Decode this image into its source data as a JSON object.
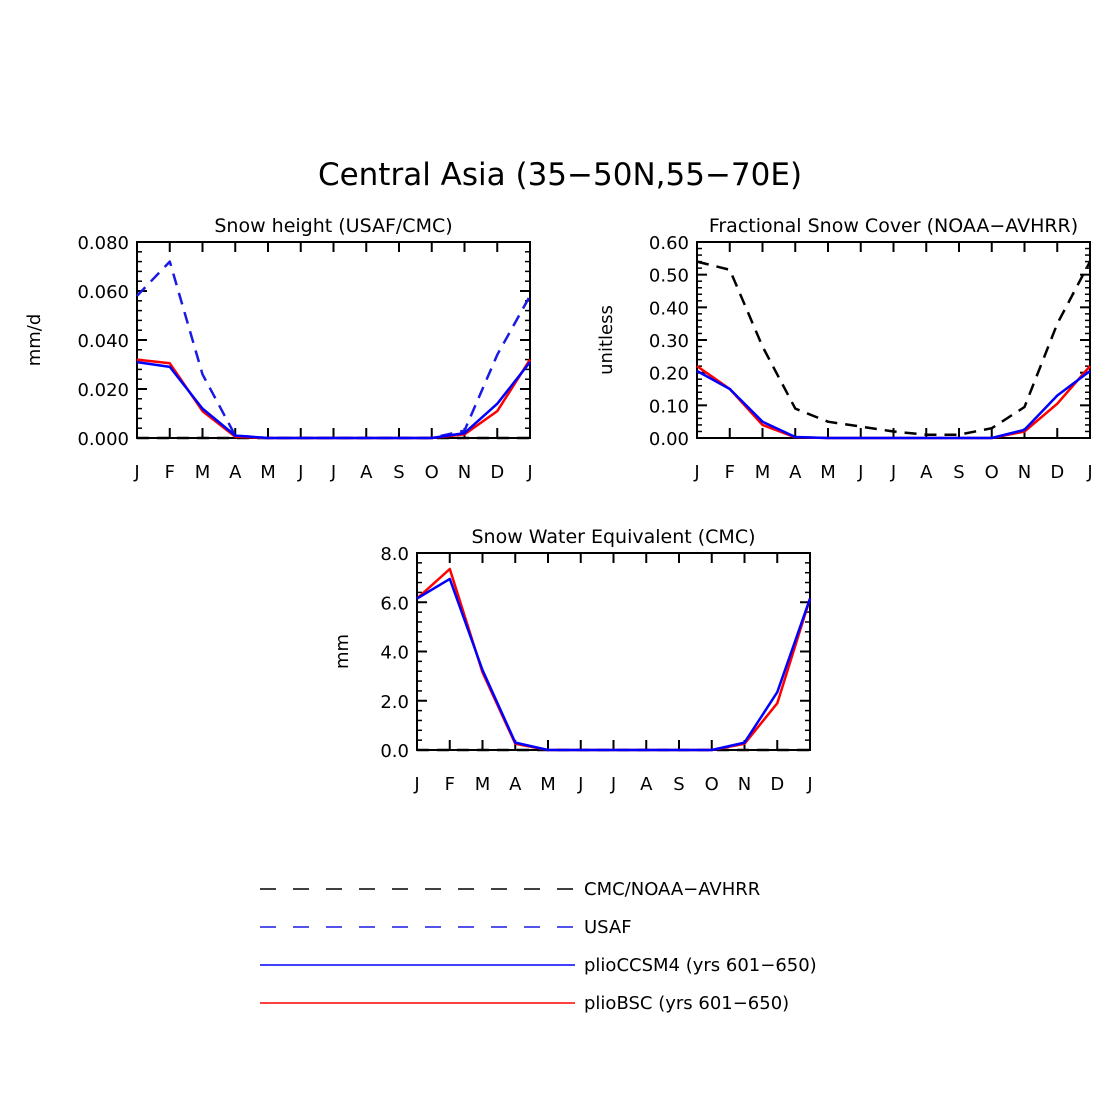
{
  "title": "Central Asia (35−50N,55−70E)",
  "colors": {
    "obs": "#000000",
    "usaf": "#1a1ae6",
    "ccsm": "#0000ff",
    "bsc": "#ff0000"
  },
  "legend": [
    {
      "label": "CMC/NOAA−AVHRR",
      "color": "#000000",
      "style": "dashed"
    },
    {
      "label": "USAF",
      "color": "#1a1ae6",
      "style": "dashed"
    },
    {
      "label": "plioCCSM4 (yrs 601−650)",
      "color": "#0000ff",
      "style": "solid"
    },
    {
      "label": "plioBSC (yrs 601−650)",
      "color": "#ff0000",
      "style": "solid"
    }
  ],
  "chart_data": [
    {
      "type": "line",
      "title": "Snow height (USAF/CMC)",
      "xlabel": "",
      "ylabel": "mm/d",
      "categories": [
        "J",
        "F",
        "M",
        "A",
        "M",
        "J",
        "J",
        "A",
        "S",
        "O",
        "N",
        "D",
        "J"
      ],
      "ylim": [
        0,
        0.08
      ],
      "yticks": [
        "0.000",
        "0.020",
        "0.040",
        "0.060",
        "0.080"
      ],
      "series": [
        {
          "name": "CMC/NOAA−AVHRR",
          "color": "#000000",
          "dashed": true,
          "values": [
            0,
            0,
            0,
            0,
            0,
            0,
            0,
            0,
            0,
            0,
            0,
            0,
            0
          ]
        },
        {
          "name": "USAF",
          "color": "#1a1ae6",
          "dashed": true,
          "values": [
            0.058,
            0.072,
            0.026,
            0.001,
            0,
            0,
            0,
            0,
            0,
            0,
            0.003,
            0.034,
            0.058
          ]
        },
        {
          "name": "plioBSC (yrs 601−650)",
          "color": "#ff0000",
          "dashed": false,
          "values": [
            0.032,
            0.0305,
            0.011,
            0.0005,
            0,
            0,
            0,
            0,
            0,
            0,
            0.0015,
            0.011,
            0.032
          ]
        },
        {
          "name": "plioCCSM4 (yrs 601−650)",
          "color": "#0000ff",
          "dashed": false,
          "values": [
            0.031,
            0.029,
            0.012,
            0.001,
            0,
            0,
            0,
            0,
            0,
            0,
            0.002,
            0.014,
            0.031
          ]
        }
      ]
    },
    {
      "type": "line",
      "title": "Fractional Snow Cover (NOAA−AVHRR)",
      "xlabel": "",
      "ylabel": "unitless",
      "categories": [
        "J",
        "F",
        "M",
        "A",
        "M",
        "J",
        "J",
        "A",
        "S",
        "O",
        "N",
        "D",
        "J"
      ],
      "ylim": [
        0,
        0.6
      ],
      "yticks": [
        "0.00",
        "0.10",
        "0.20",
        "0.30",
        "0.40",
        "0.50",
        "0.60"
      ],
      "series": [
        {
          "name": "CMC/NOAA−AVHRR",
          "color": "#000000",
          "dashed": true,
          "values": [
            0.54,
            0.515,
            0.28,
            0.09,
            0.05,
            0.035,
            0.02,
            0.01,
            0.01,
            0.03,
            0.095,
            0.35,
            0.54
          ]
        },
        {
          "name": "plioBSC (yrs 601−650)",
          "color": "#ff0000",
          "dashed": false,
          "values": [
            0.22,
            0.15,
            0.04,
            0.002,
            0,
            0,
            0,
            0,
            0,
            0,
            0.02,
            0.105,
            0.22
          ]
        },
        {
          "name": "plioCCSM4 (yrs 601−650)",
          "color": "#0000ff",
          "dashed": false,
          "values": [
            0.205,
            0.15,
            0.05,
            0.003,
            0,
            0,
            0,
            0,
            0,
            0,
            0.025,
            0.13,
            0.205
          ]
        }
      ]
    },
    {
      "type": "line",
      "title": "Snow Water Equivalent (CMC)",
      "xlabel": "",
      "ylabel": "mm",
      "categories": [
        "J",
        "F",
        "M",
        "A",
        "M",
        "J",
        "J",
        "A",
        "S",
        "O",
        "N",
        "D",
        "J"
      ],
      "ylim": [
        0,
        8
      ],
      "yticks": [
        "0.0",
        "2.0",
        "4.0",
        "6.0",
        "8.0"
      ],
      "series": [
        {
          "name": "CMC/NOAA−AVHRR",
          "color": "#000000",
          "dashed": true,
          "values": [
            0,
            0,
            0,
            0,
            0,
            0,
            0,
            0,
            0,
            0,
            0,
            0,
            0
          ]
        },
        {
          "name": "plioBSC (yrs 601−650)",
          "color": "#ff0000",
          "dashed": false,
          "values": [
            6.15,
            7.35,
            3.15,
            0.25,
            0,
            0,
            0,
            0,
            0,
            0,
            0.25,
            1.9,
            6.15
          ]
        },
        {
          "name": "plioCCSM4 (yrs 601−650)",
          "color": "#0000ff",
          "dashed": false,
          "values": [
            6.15,
            6.95,
            3.25,
            0.3,
            0,
            0,
            0,
            0,
            0,
            0,
            0.3,
            2.35,
            6.15
          ]
        }
      ]
    }
  ]
}
